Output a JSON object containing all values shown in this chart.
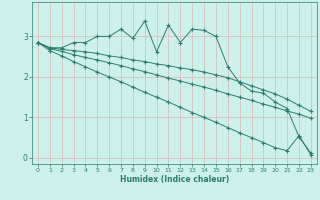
{
  "xlabel": "Humidex (Indice chaleur)",
  "bg_color": "#cdf0ea",
  "grid_color": "#d8b8b8",
  "line_color": "#2d7d6e",
  "xlim": [
    -0.5,
    23.5
  ],
  "ylim": [
    -0.15,
    3.85
  ],
  "xticks": [
    0,
    1,
    2,
    3,
    4,
    5,
    6,
    7,
    8,
    9,
    10,
    11,
    12,
    13,
    14,
    15,
    16,
    17,
    18,
    19,
    20,
    21,
    22,
    23
  ],
  "yticks": [
    0,
    1,
    2,
    3
  ],
  "curve1_x": [
    0,
    1,
    2,
    3,
    4,
    5,
    6,
    7,
    8,
    9,
    10,
    11,
    12,
    13,
    14,
    15,
    16,
    17,
    18,
    19,
    20,
    21,
    22,
    23
  ],
  "curve1_y": [
    2.85,
    2.72,
    2.72,
    2.85,
    2.85,
    3.0,
    3.0,
    3.18,
    2.95,
    3.38,
    2.62,
    3.28,
    2.85,
    3.18,
    3.15,
    3.0,
    2.25,
    1.85,
    1.65,
    1.6,
    1.38,
    1.22,
    0.52,
    0.12
  ],
  "curve2_x": [
    0,
    1,
    2,
    3,
    4,
    5,
    6,
    7,
    8,
    9,
    10,
    11,
    12,
    13,
    14,
    15,
    16,
    17,
    18,
    19,
    20,
    21,
    22,
    23
  ],
  "curve2_y": [
    2.85,
    2.72,
    2.68,
    2.65,
    2.62,
    2.58,
    2.52,
    2.48,
    2.42,
    2.38,
    2.32,
    2.28,
    2.22,
    2.18,
    2.12,
    2.05,
    1.98,
    1.88,
    1.78,
    1.68,
    1.58,
    1.45,
    1.3,
    1.15
  ],
  "curve3_x": [
    0,
    1,
    2,
    3,
    4,
    5,
    6,
    7,
    8,
    9,
    10,
    11,
    12,
    13,
    14,
    15,
    16,
    17,
    18,
    19,
    20,
    21,
    22,
    23
  ],
  "curve3_y": [
    2.85,
    2.7,
    2.63,
    2.55,
    2.48,
    2.42,
    2.35,
    2.28,
    2.2,
    2.13,
    2.05,
    1.97,
    1.9,
    1.82,
    1.75,
    1.67,
    1.58,
    1.5,
    1.42,
    1.33,
    1.25,
    1.16,
    1.08,
    0.98
  ],
  "curve4_x": [
    0,
    1,
    2,
    3,
    4,
    5,
    6,
    7,
    8,
    9,
    10,
    11,
    12,
    13,
    14,
    15,
    16,
    17,
    18,
    19,
    20,
    21,
    22,
    23
  ],
  "curve4_y": [
    2.85,
    2.65,
    2.52,
    2.38,
    2.25,
    2.12,
    2.0,
    1.88,
    1.75,
    1.62,
    1.5,
    1.38,
    1.25,
    1.12,
    1.0,
    0.88,
    0.75,
    0.62,
    0.5,
    0.38,
    0.25,
    0.18,
    0.55,
    0.08
  ]
}
